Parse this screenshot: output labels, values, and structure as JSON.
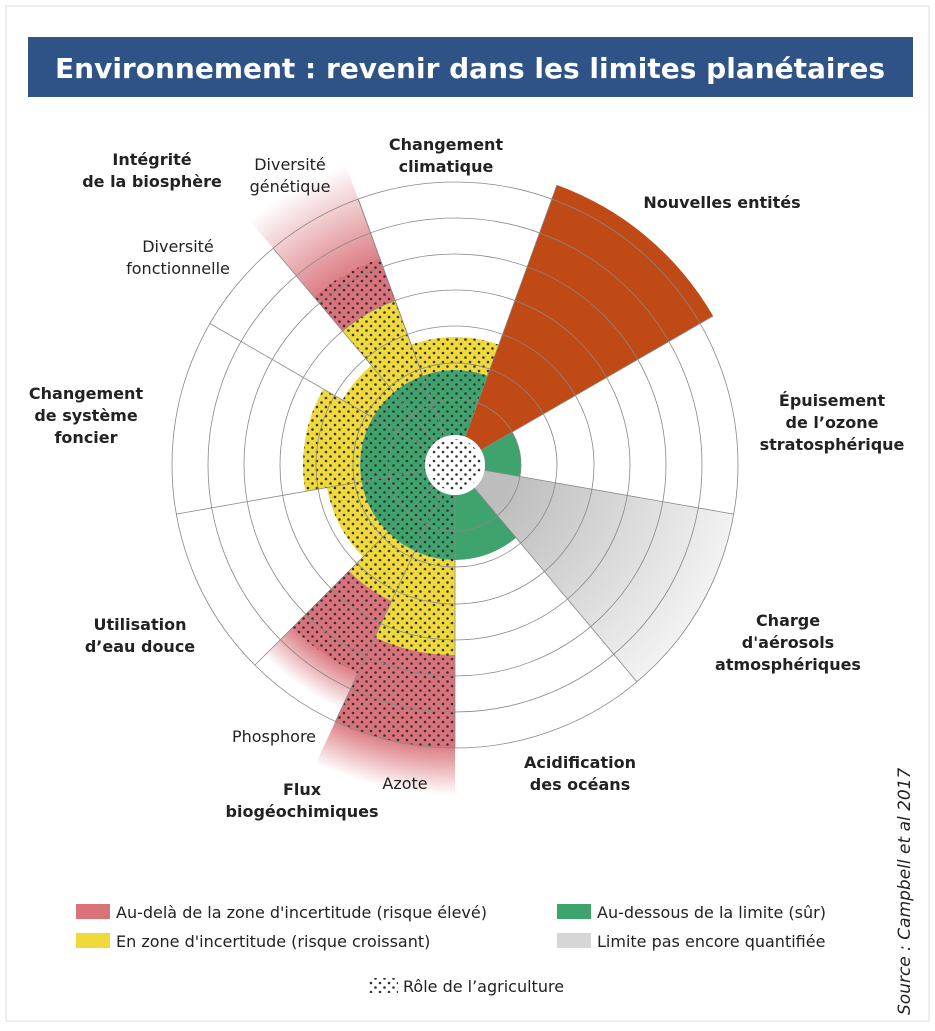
{
  "header": {
    "title": "Environnement : revenir dans les limites planétaires"
  },
  "labels": {
    "biosphere": [
      "Intégrité",
      "de la biosphère"
    ],
    "genetic": [
      "Diversité",
      "génétique"
    ],
    "functional": [
      "Diversité",
      "fonctionnelle"
    ],
    "climate": [
      "Changement",
      "climatique"
    ],
    "novel": [
      "Nouvelles entités"
    ],
    "ozone": [
      "Épuisement",
      "de l’ozone",
      "stratosphérique"
    ],
    "aerosols": [
      "Charge",
      "d'aérosols",
      "atmosphériques"
    ],
    "ocean": [
      "Acidification",
      "des océans"
    ],
    "nitrogen": [
      "Azote"
    ],
    "phosphorus": [
      "Phosphore"
    ],
    "biogeochemical": [
      "Flux",
      "biogéochimiques"
    ],
    "freshwater": [
      "Utilisation",
      "d’eau douce"
    ],
    "land": [
      "Changement",
      "de système",
      "foncier"
    ]
  },
  "legend": [
    "Au-delà de la zone d'incertitude (risque élevé)",
    "Au-dessous de la limite (sûr)",
    "En zone d'incertitude (risque croissant)",
    "Limite pas encore quantifiée",
    "Rôle de l’agriculture"
  ],
  "source": "Source : Campbell et al 2017"
}
